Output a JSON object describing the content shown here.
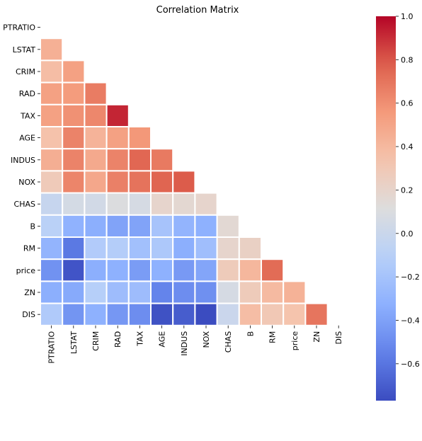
{
  "chart_data": {
    "type": "heatmap",
    "title": "Correlation Matrix",
    "variables": [
      "PTRATIO",
      "LSTAT",
      "CRIM",
      "RAD",
      "TAX",
      "AGE",
      "INDUS",
      "NOX",
      "CHAS",
      "B",
      "RM",
      "price",
      "ZN",
      "DIS"
    ],
    "mask": "upper-triangle-and-diagonal",
    "colormap": "coolwarm",
    "vmin": -0.77,
    "vmax": 1.0,
    "colorbar_ticks": [
      "1.0",
      "0.8",
      "0.6",
      "0.4",
      "0.2",
      "0.0",
      "−0.2",
      "−0.4",
      "−0.6"
    ],
    "colorbar_tick_values": [
      1.0,
      0.8,
      0.6,
      0.4,
      0.2,
      0.0,
      -0.2,
      -0.4,
      -0.6
    ],
    "grid_lines": "white",
    "values": [
      [],
      [
        0.37
      ],
      [
        0.29,
        0.46
      ],
      [
        0.46,
        0.49,
        0.63
      ],
      [
        0.46,
        0.54,
        0.58,
        0.91
      ],
      [
        0.26,
        0.6,
        0.35,
        0.46,
        0.51
      ],
      [
        0.38,
        0.6,
        0.41,
        0.6,
        0.72,
        0.64
      ],
      [
        0.19,
        0.59,
        0.42,
        0.61,
        0.67,
        0.73,
        0.76
      ],
      [
        -0.12,
        -0.05,
        -0.06,
        -0.01,
        -0.04,
        0.09,
        0.06,
        0.09
      ],
      [
        -0.18,
        -0.37,
        -0.39,
        -0.44,
        -0.44,
        -0.27,
        -0.36,
        -0.38,
        0.05
      ],
      [
        -0.36,
        -0.61,
        -0.22,
        -0.21,
        -0.29,
        -0.24,
        -0.39,
        -0.3,
        0.09,
        0.13
      ],
      [
        -0.51,
        -0.74,
        -0.39,
        -0.38,
        -0.47,
        -0.38,
        -0.48,
        -0.43,
        0.18,
        0.33,
        0.7
      ],
      [
        -0.39,
        -0.41,
        -0.2,
        -0.31,
        -0.31,
        -0.57,
        -0.53,
        -0.52,
        -0.04,
        0.18,
        0.31,
        0.36
      ],
      [
        -0.23,
        -0.5,
        -0.38,
        -0.49,
        -0.53,
        -0.75,
        -0.71,
        -0.77,
        -0.1,
        0.29,
        0.21,
        0.25,
        0.66
      ]
    ]
  }
}
